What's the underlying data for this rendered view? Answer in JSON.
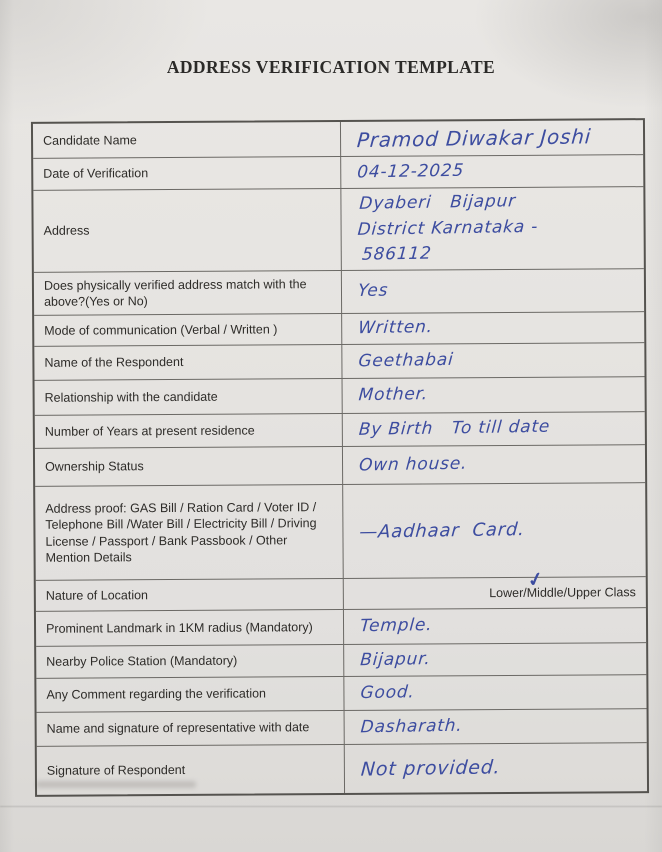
{
  "page": {
    "title": "ADDRESS VERIFICATION TEMPLATE"
  },
  "ink_color": "#3d4da0",
  "form": {
    "rows": [
      {
        "label": "Candidate Name",
        "value": "Pramod Diwakar Joshi"
      },
      {
        "label": "Date of Verification",
        "value": "04-12-2025"
      },
      {
        "label": "Address",
        "value": "Dyaberi   Bijapur\nDistrict Karnataka -\n 586112"
      },
      {
        "label": "Does physically verified address match with the above?(Yes or No)",
        "value": "Yes"
      },
      {
        "label": "Mode of communication (Verbal / Written )",
        "value": "Written."
      },
      {
        "label": "Name of the Respondent",
        "value": "Geethabai"
      },
      {
        "label": "Relationship with the candidate",
        "value": "Mother."
      },
      {
        "label": "Number of Years at present residence",
        "value": "By Birth   To till date"
      },
      {
        "label": "Ownership Status",
        "value": "Own house."
      },
      {
        "label": "Address proof: GAS Bill / Ration Card / Voter ID / Telephone Bill /Water Bill / Electricity Bill / Driving License / Passport / Bank Passbook / Other Mention Details",
        "value": "—Aadhaar  Card."
      },
      {
        "label": "Nature of Location",
        "options": [
          "Lower",
          "Middle",
          "Upper Class"
        ],
        "checked": "Middle"
      },
      {
        "label": "Prominent Landmark in 1KM radius (Mandatory)",
        "value": "Temple."
      },
      {
        "label": "Nearby Police Station (Mandatory)",
        "value": "Bijapur."
      },
      {
        "label": "Any Comment regarding the verification",
        "value": "Good."
      },
      {
        "label": "Name and signature of representative with date",
        "value": "Dasharath."
      },
      {
        "label": "Signature of Respondent",
        "value": "Not provided."
      }
    ]
  }
}
